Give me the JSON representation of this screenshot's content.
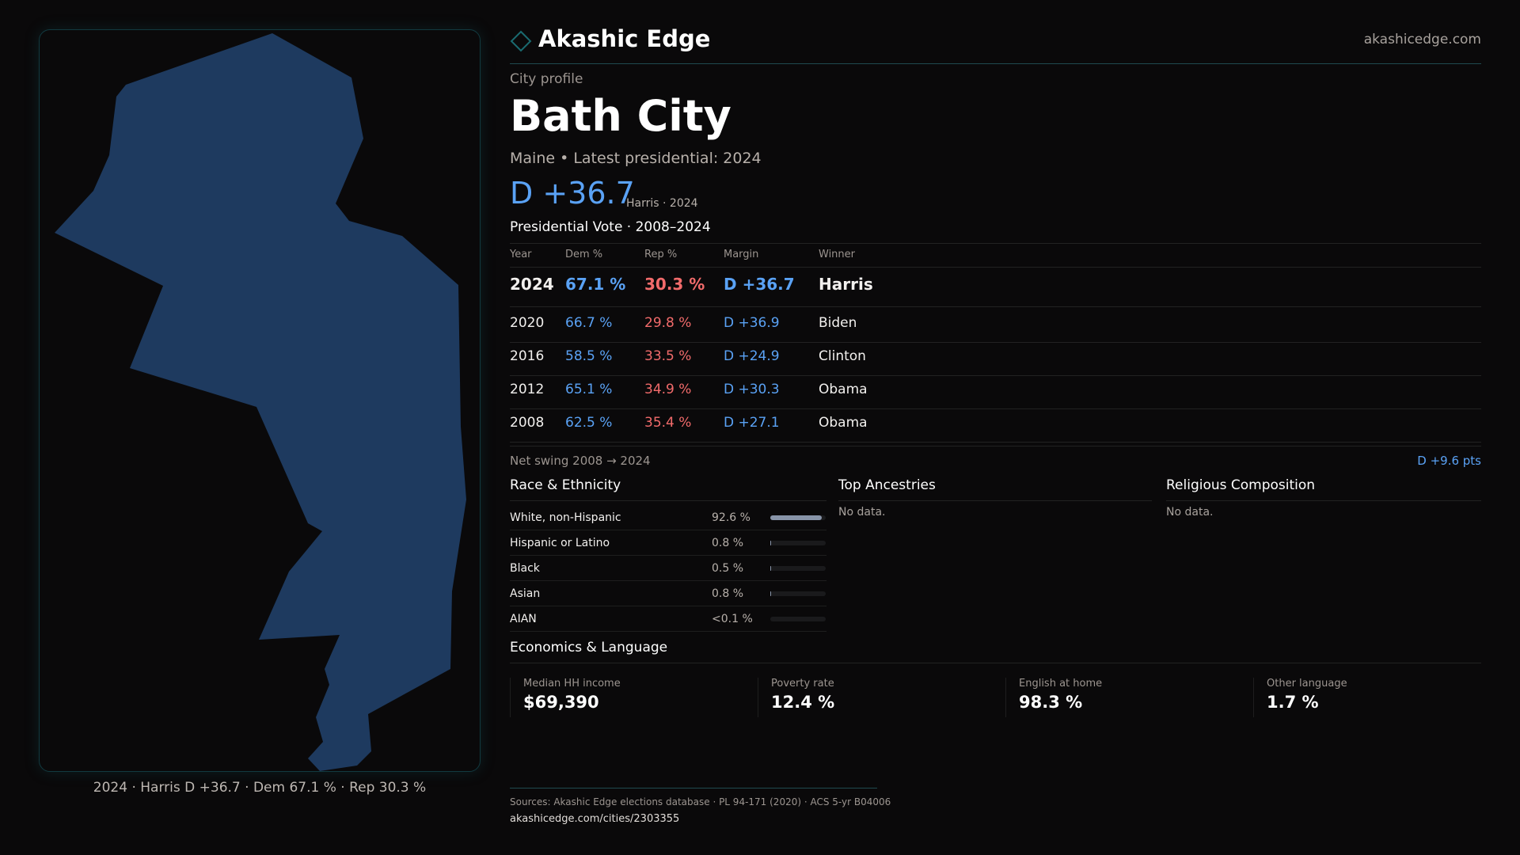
{
  "brand": {
    "name": "Akashic Edge",
    "site": "akashicedge.com",
    "logo_icon": "diamond-icon"
  },
  "map": {
    "caption": "2024 · Harris D +36.7 · Dem 67.1 % · Rep 30.3 %",
    "fill": "#1e3a5f"
  },
  "profile": {
    "eyebrow": "City profile",
    "title": "Bath City",
    "subtitle": "Maine • Latest presidential: 2024",
    "margin": "D +36.7",
    "margin_note": "Harris · 2024"
  },
  "votes": {
    "title": "Presidential Vote · 2008–2024",
    "headers": [
      "Year",
      "Dem %",
      "Rep %",
      "Margin",
      "Winner"
    ],
    "rows": [
      {
        "year": "2024",
        "dem": "67.1 %",
        "rep": "30.3 %",
        "margin": "D +36.7",
        "winner": "Harris"
      },
      {
        "year": "2020",
        "dem": "66.7 %",
        "rep": "29.8 %",
        "margin": "D +36.9",
        "winner": "Biden"
      },
      {
        "year": "2016",
        "dem": "58.5 %",
        "rep": "33.5 %",
        "margin": "D +24.9",
        "winner": "Clinton"
      },
      {
        "year": "2012",
        "dem": "65.1 %",
        "rep": "34.9 %",
        "margin": "D +30.3",
        "winner": "Obama"
      },
      {
        "year": "2008",
        "dem": "62.5 %",
        "rep": "35.4 %",
        "margin": "D +27.1",
        "winner": "Obama"
      }
    ],
    "swing_label": "Net swing 2008 → 2024",
    "swing_value": "D +9.6 pts"
  },
  "colors": {
    "dem": "#5aa2f5",
    "rep": "#f26b6b"
  },
  "race": {
    "title": "Race & Ethnicity",
    "rows": [
      {
        "label": "White, non-Hispanic",
        "value": "92.6 %",
        "pct": 92.6
      },
      {
        "label": "Hispanic or Latino",
        "value": "0.8 %",
        "pct": 0.8
      },
      {
        "label": "Black",
        "value": "0.5 %",
        "pct": 0.5
      },
      {
        "label": "Asian",
        "value": "0.8 %",
        "pct": 0.8
      },
      {
        "label": "AIAN",
        "value": "<0.1 %",
        "pct": 0.05
      }
    ]
  },
  "ancestries": {
    "title": "Top Ancestries",
    "empty": "No data."
  },
  "religion": {
    "title": "Religious Composition",
    "empty": "No data."
  },
  "econ": {
    "title": "Economics & Language",
    "cards": [
      {
        "label": "Median HH income",
        "value": "$69,390"
      },
      {
        "label": "Poverty rate",
        "value": "12.4 %"
      },
      {
        "label": "English at home",
        "value": "98.3 %"
      },
      {
        "label": "Other language",
        "value": "1.7 %"
      }
    ]
  },
  "footer": {
    "sources": "Sources: Akashic Edge elections database · PL 94-171 (2020) · ACS 5-yr B04006",
    "url": "akashicedge.com/cities/2303355"
  }
}
